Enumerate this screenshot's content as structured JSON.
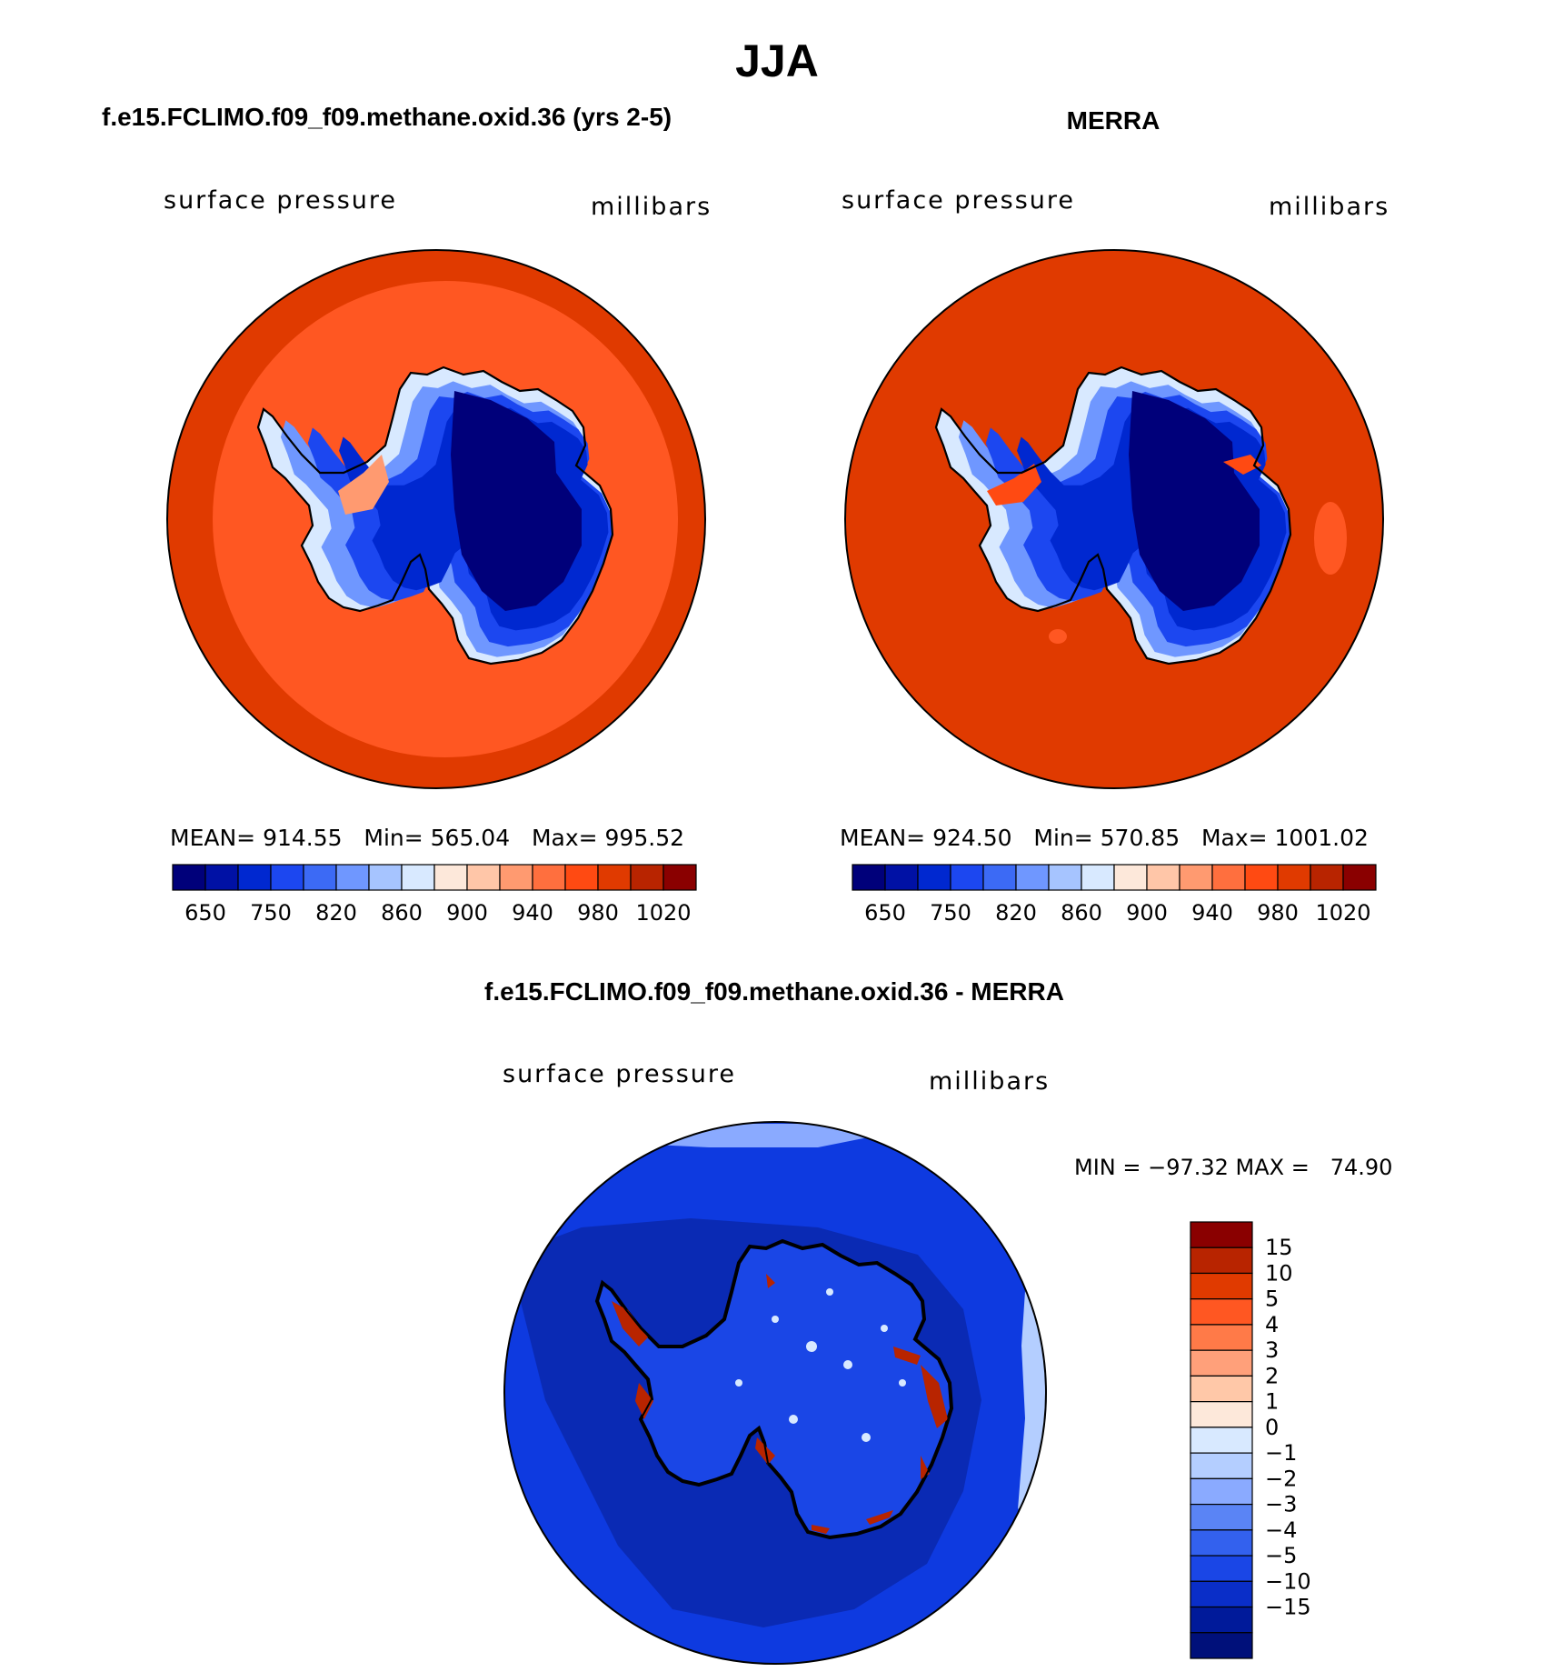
{
  "title": "JJA",
  "panels": [
    {
      "case_title": "f.e15.FCLIMO.f09_f09.methane.oxid.36 (yrs 2-5)",
      "left_label": "surface pressure",
      "right_label": "millibars",
      "stats_text": "MEAN= 914.55   Min= 565.04   Max= 995.52",
      "ocean_outer_color": "#e03a00",
      "ocean_inner_color": "#ff5722"
    },
    {
      "case_title": "MERRA",
      "left_label": "surface pressure",
      "right_label": "millibars",
      "stats_text": "MEAN= 924.50   Min= 570.85   Max= 1001.02",
      "ocean_outer_color": "#e03a00",
      "ocean_inner_color": "#e03a00"
    }
  ],
  "shared_colorbar": {
    "colors": [
      "#00007a",
      "#0011a5",
      "#0028d0",
      "#1c47f0",
      "#3c6af5",
      "#6f97ff",
      "#a6c4ff",
      "#d8e9ff",
      "#fde8da",
      "#ffc6a8",
      "#ff9a70",
      "#ff6f3e",
      "#ff4a12",
      "#e03a00",
      "#b82400",
      "#8a0000"
    ],
    "tick_labels": [
      "650",
      "750",
      "820",
      "860",
      "900",
      "940",
      "980",
      "1020"
    ]
  },
  "diff_panel": {
    "case_title": "f.e15.FCLIMO.f09_f09.methane.oxid.36 - MERRA",
    "left_label": "surface pressure",
    "right_label": "millibars",
    "minmax_text": "MIN = −97.32 MAX =   74.90",
    "colorbar": {
      "colors": [
        "#8a0000",
        "#b82400",
        "#e03a00",
        "#ff5722",
        "#ff7a48",
        "#ffa07a",
        "#ffc8a8",
        "#fde8da",
        "#d8e9ff",
        "#b4ceff",
        "#8aaaff",
        "#5a84f5",
        "#3361ee",
        "#1a46e6",
        "#0a2ec8",
        "#001a9a",
        "#00107a"
      ],
      "tick_labels": [
        "15",
        "10",
        "5",
        "4",
        "3",
        "2",
        "1",
        "0",
        "−1",
        "−2",
        "−3",
        "−4",
        "−5",
        "−10",
        "−15"
      ]
    },
    "ocean_color": "#0e3ae0",
    "coast_shelf_color": "#0a2ab4"
  }
}
